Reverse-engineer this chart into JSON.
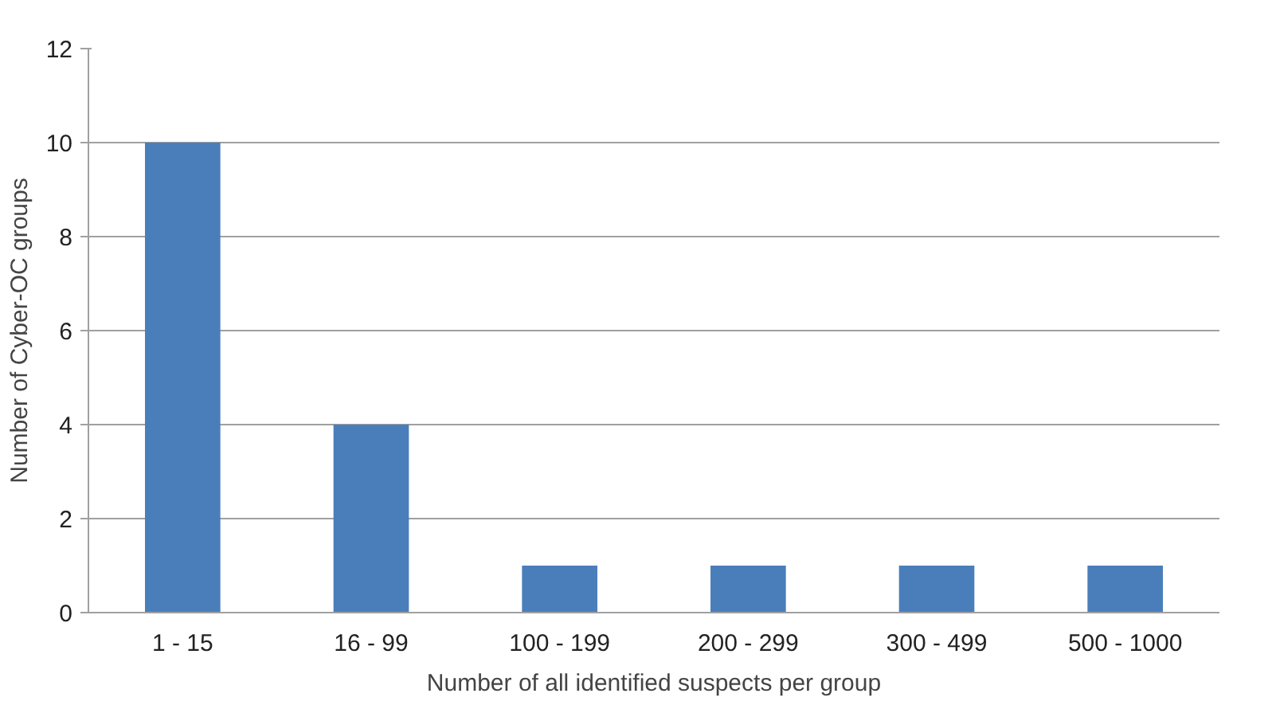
{
  "chart_data": {
    "type": "bar",
    "xlabel": "Number of all identified suspects per group",
    "ylabel": "Number of Cyber-OC groups",
    "categories": [
      "1 - 15",
      "16 - 99",
      "100 - 199",
      "200 - 299",
      "300 - 499",
      "500 - 1000"
    ],
    "values": [
      10,
      4,
      1,
      1,
      1,
      1
    ],
    "color": "#4a7ebb",
    "ylim": [
      0,
      12
    ],
    "yticks": [
      0,
      2,
      4,
      6,
      8,
      10,
      12
    ],
    "grid": "y"
  }
}
